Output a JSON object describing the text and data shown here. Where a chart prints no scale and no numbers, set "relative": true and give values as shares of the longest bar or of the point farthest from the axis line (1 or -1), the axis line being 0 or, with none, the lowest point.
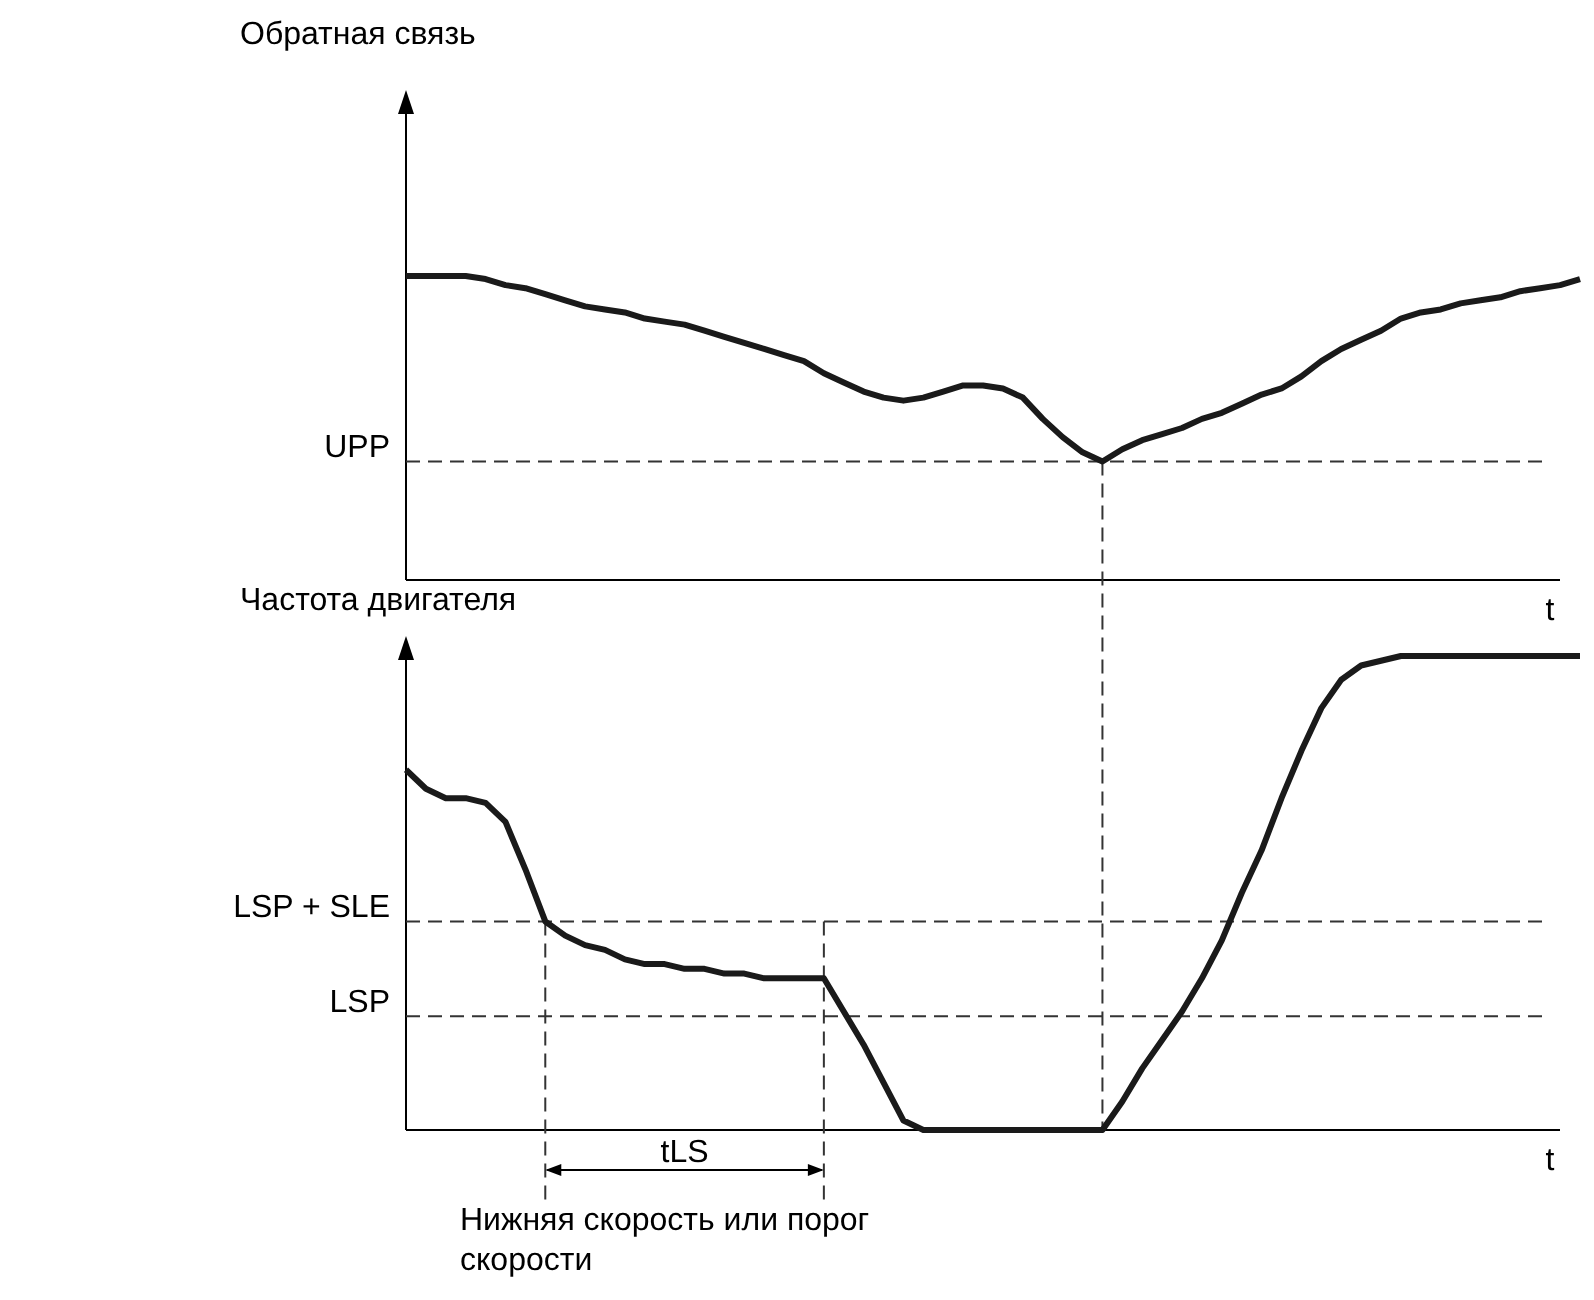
{
  "chart_data": [
    {
      "type": "line",
      "ylabel": "Обратная связь",
      "xlabel": "t",
      "relative": true,
      "categories": [
        null,
        null,
        null,
        null,
        null,
        null,
        null,
        null,
        null,
        null,
        null,
        null,
        null,
        null,
        null,
        null,
        null,
        null,
        null,
        null,
        null,
        null,
        null,
        null,
        null,
        null,
        null,
        null,
        null,
        null,
        null,
        null,
        null,
        null,
        null,
        null,
        null,
        null,
        null,
        null,
        null,
        null,
        null,
        null,
        null,
        null,
        null,
        null,
        null,
        null,
        null,
        null,
        null,
        null,
        null,
        null,
        null,
        null,
        null,
        null
      ],
      "series": [
        {
          "color": "#1a1a1a",
          "values": [
            1.0,
            1.0,
            1.0,
            1.0,
            0.99,
            0.97,
            0.96,
            0.94,
            0.92,
            0.9,
            0.89,
            0.88,
            0.86,
            0.85,
            0.84,
            0.82,
            0.8,
            0.78,
            0.76,
            0.74,
            0.72,
            0.68,
            0.65,
            0.62,
            0.6,
            0.59,
            0.6,
            0.62,
            0.64,
            0.64,
            0.63,
            0.6,
            0.53,
            0.47,
            0.42,
            0.39,
            0.43,
            0.46,
            0.48,
            0.5,
            0.53,
            0.55,
            0.58,
            0.61,
            0.63,
            0.67,
            0.72,
            0.76,
            0.79,
            0.82,
            0.86,
            0.88,
            0.89,
            0.91,
            0.92,
            0.93,
            0.95,
            0.96,
            0.97,
            0.99
          ]
        }
      ],
      "ref_lines": [
        {
          "axis": "y",
          "value": 0.39,
          "label": "UPP",
          "line_style": "dashed",
          "color": "#333333"
        }
      ]
    },
    {
      "type": "line",
      "ylabel": "Частота двигателя",
      "xlabel": "t",
      "relative": true,
      "categories": [
        null,
        null,
        null,
        null,
        null,
        null,
        null,
        null,
        null,
        null,
        null,
        null,
        null,
        null,
        null,
        null,
        null,
        null,
        null,
        null,
        null,
        null,
        null,
        null,
        null,
        null,
        null,
        null,
        null,
        null,
        null,
        null,
        null,
        null,
        null,
        null,
        null,
        null,
        null,
        null,
        null,
        null,
        null,
        null,
        null,
        null,
        null,
        null,
        null,
        null,
        null,
        null,
        null,
        null,
        null,
        null,
        null,
        null,
        null,
        null
      ],
      "series": [
        {
          "color": "#1a1a1a",
          "values": [
            0.76,
            0.72,
            0.7,
            0.7,
            0.69,
            0.65,
            0.55,
            0.44,
            0.41,
            0.39,
            0.38,
            0.36,
            0.35,
            0.35,
            0.34,
            0.34,
            0.33,
            0.33,
            0.32,
            0.32,
            0.32,
            0.32,
            0.25,
            0.18,
            0.1,
            0.02,
            0,
            0,
            0,
            0,
            0,
            0,
            0,
            0,
            0,
            0,
            0.06,
            0.13,
            0.19,
            0.25,
            0.32,
            0.4,
            0.5,
            0.59,
            0.7,
            0.8,
            0.89,
            0.95,
            0.98,
            0.99,
            1.0,
            1.0,
            1.0,
            1.0,
            1.0,
            1.0,
            1.0,
            1.0,
            1.0,
            1.0
          ]
        }
      ],
      "ref_lines": [
        {
          "axis": "y",
          "value": 0.44,
          "label": "LSP + SLE",
          "line_style": "dashed",
          "color": "#333333"
        },
        {
          "axis": "y",
          "value": 0.24,
          "label": "LSP",
          "line_style": "dashed",
          "color": "#333333"
        }
      ],
      "annotations": [
        "tLS",
        "Нижняя скорость или порог скорости"
      ]
    }
  ]
}
